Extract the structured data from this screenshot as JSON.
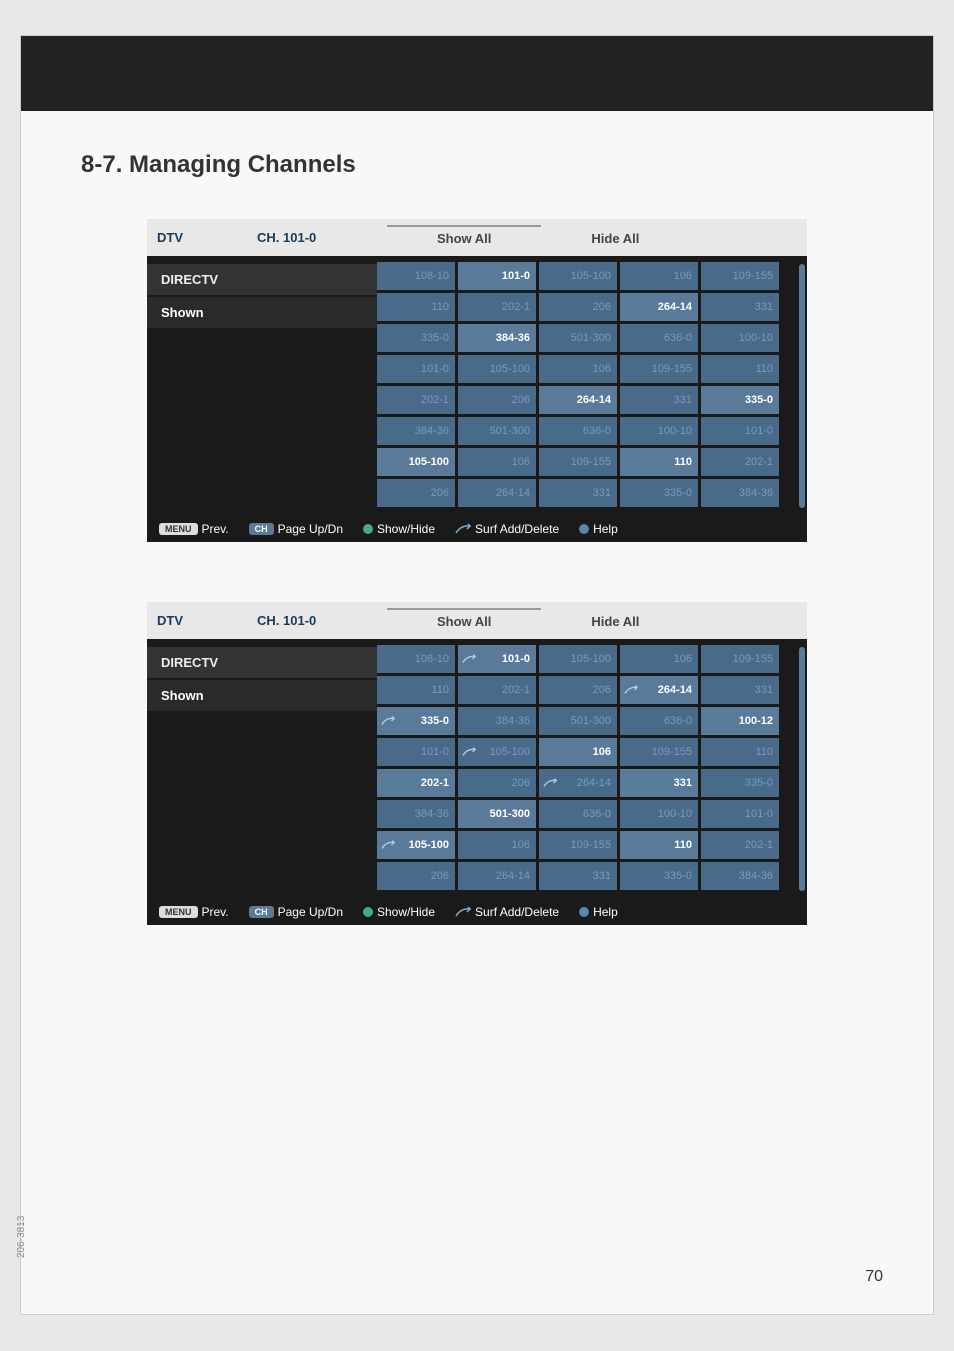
{
  "page": {
    "section_title": "8-7. Managing Channels",
    "page_number": "70",
    "doc_code": "206-3813"
  },
  "shared": {
    "header": {
      "dtv": "DTV",
      "channel": "CH. 101-0"
    },
    "tabs": {
      "show_all": "Show All",
      "hide_all": "Hide All"
    },
    "sidebar": {
      "directv": "DIRECTV",
      "shown": "Shown"
    },
    "footer": {
      "prev": "Prev.",
      "page_updn": "Page Up/Dn",
      "show_hide": "Show/Hide",
      "surf_add_delete": "Surf Add/Delete",
      "help": "Help",
      "menu_btn": "MENU",
      "ch_btn": "CH"
    }
  },
  "screenshot1": {
    "grid_rows": [
      [
        {
          "label": "108-10",
          "bright": false
        },
        {
          "label": "101-0",
          "bright": true
        },
        {
          "label": "105-100",
          "bright": false
        },
        {
          "label": "106",
          "bright": false
        },
        {
          "label": "109-155",
          "bright": false
        }
      ],
      [
        {
          "label": "110",
          "bright": false
        },
        {
          "label": "202-1",
          "bright": false
        },
        {
          "label": "206",
          "bright": false
        },
        {
          "label": "264-14",
          "bright": true
        },
        {
          "label": "331",
          "bright": false
        }
      ],
      [
        {
          "label": "335-0",
          "bright": false
        },
        {
          "label": "384-36",
          "bright": true
        },
        {
          "label": "501-300",
          "bright": false
        },
        {
          "label": "636-0",
          "bright": false
        },
        {
          "label": "100-10",
          "bright": false
        }
      ],
      [
        {
          "label": "101-0",
          "bright": false
        },
        {
          "label": "105-100",
          "bright": false
        },
        {
          "label": "106",
          "bright": false
        },
        {
          "label": "109-155",
          "bright": false
        },
        {
          "label": "110",
          "bright": false
        }
      ],
      [
        {
          "label": "202-1",
          "bright": false
        },
        {
          "label": "206",
          "bright": false
        },
        {
          "label": "264-14",
          "bright": true
        },
        {
          "label": "331",
          "bright": false
        },
        {
          "label": "335-0",
          "bright": true
        }
      ],
      [
        {
          "label": "384-36",
          "bright": false
        },
        {
          "label": "501-300",
          "bright": false
        },
        {
          "label": "636-0",
          "bright": false
        },
        {
          "label": "100-10",
          "bright": false
        },
        {
          "label": "101-0",
          "bright": false
        }
      ],
      [
        {
          "label": "105-100",
          "bright": true
        },
        {
          "label": "106",
          "bright": false
        },
        {
          "label": "109-155",
          "bright": false
        },
        {
          "label": "110",
          "bright": true
        },
        {
          "label": "202-1",
          "bright": false
        }
      ],
      [
        {
          "label": "206",
          "bright": false
        },
        {
          "label": "264-14",
          "bright": false
        },
        {
          "label": "331",
          "bright": false
        },
        {
          "label": "335-0",
          "bright": false
        },
        {
          "label": "384-36",
          "bright": false
        }
      ]
    ]
  },
  "screenshot2": {
    "grid_rows": [
      [
        {
          "label": "108-10",
          "bright": false
        },
        {
          "label": "101-0",
          "bright": true,
          "surf": true
        },
        {
          "label": "105-100",
          "bright": false
        },
        {
          "label": "106",
          "bright": false
        },
        {
          "label": "109-155",
          "bright": false
        }
      ],
      [
        {
          "label": "110",
          "bright": false
        },
        {
          "label": "202-1",
          "bright": false
        },
        {
          "label": "206",
          "bright": false
        },
        {
          "label": "264-14",
          "bright": true,
          "surf": true
        },
        {
          "label": "331",
          "bright": false
        }
      ],
      [
        {
          "label": "335-0",
          "bright": true,
          "surf": true
        },
        {
          "label": "384-36",
          "bright": false
        },
        {
          "label": "501-300",
          "bright": false
        },
        {
          "label": "636-0",
          "bright": false
        },
        {
          "label": "100-12",
          "bright": true
        }
      ],
      [
        {
          "label": "101-0",
          "bright": false
        },
        {
          "label": "105-100",
          "bright": false,
          "surf": true
        },
        {
          "label": "106",
          "bright": true
        },
        {
          "label": "109-155",
          "bright": false
        },
        {
          "label": "110",
          "bright": false
        }
      ],
      [
        {
          "label": "202-1",
          "bright": true
        },
        {
          "label": "206",
          "bright": false
        },
        {
          "label": "264-14",
          "bright": false,
          "surf": true
        },
        {
          "label": "331",
          "bright": true
        },
        {
          "label": "335-0",
          "bright": false
        }
      ],
      [
        {
          "label": "384-36",
          "bright": false
        },
        {
          "label": "501-300",
          "bright": true
        },
        {
          "label": "636-0",
          "bright": false
        },
        {
          "label": "100-10",
          "bright": false
        },
        {
          "label": "101-0",
          "bright": false
        }
      ],
      [
        {
          "label": "105-100",
          "bright": true,
          "surf": true
        },
        {
          "label": "106",
          "bright": false
        },
        {
          "label": "109-155",
          "bright": false
        },
        {
          "label": "110",
          "bright": true
        },
        {
          "label": "202-1",
          "bright": false
        }
      ],
      [
        {
          "label": "206",
          "bright": false
        },
        {
          "label": "264-14",
          "bright": false
        },
        {
          "label": "331",
          "bright": false
        },
        {
          "label": "335-0",
          "bright": false
        },
        {
          "label": "384-36",
          "bright": false
        }
      ]
    ]
  },
  "colors": {
    "page_bg": "#f8f8f8",
    "header_bar": "#222222",
    "tv_bg": "#1a1a1a",
    "tv_header_bg": "#e8e8e8",
    "cell_dim": "#4a6a8a",
    "cell_bright": "#5a7a9a",
    "cell_dim_text": "#7a9abf",
    "cell_bright_text": "#ffffff"
  }
}
